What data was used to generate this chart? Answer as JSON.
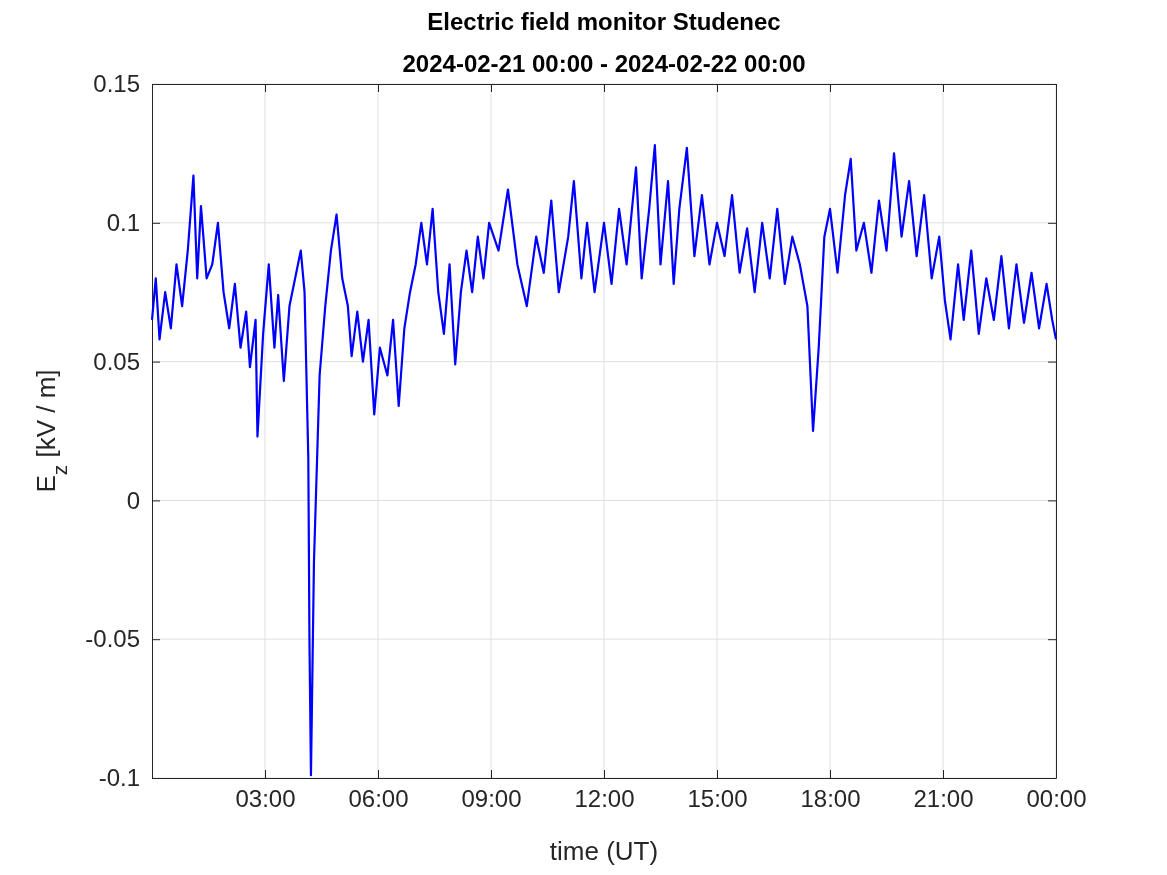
{
  "chart_data": {
    "type": "line",
    "title": "Electric field monitor Studenec",
    "subtitle": "2024-02-21 00:00 - 2024-02-22 00:00",
    "xlabel": "time (UT)",
    "ylabel": "E$_{z}$ [kV / m]",
    "xlim": [
      0,
      24
    ],
    "xticks": [
      {
        "value": 3,
        "label": "03:00"
      },
      {
        "value": 6,
        "label": "06:00"
      },
      {
        "value": 9,
        "label": "09:00"
      },
      {
        "value": 12,
        "label": "12:00"
      },
      {
        "value": 15,
        "label": "15:00"
      },
      {
        "value": 18,
        "label": "18:00"
      },
      {
        "value": 21,
        "label": "21:00"
      },
      {
        "value": 24,
        "label": "00:00"
      }
    ],
    "ylim": [
      -0.1,
      0.15
    ],
    "yticks": [
      -0.1,
      -0.05,
      0,
      0.05,
      0.1,
      0.15
    ],
    "grid": true,
    "marker": "none",
    "line_style": "solid",
    "x": [
      0,
      0.1,
      0.2,
      0.35,
      0.5,
      0.65,
      0.8,
      0.95,
      1.1,
      1.2,
      1.3,
      1.45,
      1.6,
      1.75,
      1.9,
      2.05,
      2.2,
      2.35,
      2.5,
      2.6,
      2.75,
      2.8,
      2.95,
      3.1,
      3.25,
      3.35,
      3.5,
      3.65,
      3.8,
      3.95,
      4.05,
      4.15,
      4.18,
      4.22,
      4.3,
      4.45,
      4.6,
      4.75,
      4.9,
      5.05,
      5.2,
      5.3,
      5.45,
      5.6,
      5.75,
      5.9,
      6.05,
      6.25,
      6.4,
      6.55,
      6.7,
      6.85,
      7,
      7.15,
      7.3,
      7.45,
      7.6,
      7.75,
      7.9,
      8.05,
      8.2,
      8.35,
      8.5,
      8.65,
      8.8,
      8.95,
      9.2,
      9.45,
      9.7,
      9.95,
      10.2,
      10.4,
      10.6,
      10.8,
      11.05,
      11.2,
      11.4,
      11.55,
      11.75,
      12,
      12.2,
      12.4,
      12.6,
      12.85,
      13,
      13.2,
      13.35,
      13.5,
      13.7,
      13.85,
      14,
      14.2,
      14.4,
      14.6,
      14.8,
      15,
      15.2,
      15.4,
      15.6,
      15.8,
      16,
      16.2,
      16.4,
      16.6,
      16.8,
      17,
      17.2,
      17.4,
      17.55,
      17.7,
      17.85,
      18,
      18.2,
      18.4,
      18.55,
      18.7,
      18.9,
      19.1,
      19.3,
      19.5,
      19.7,
      19.9,
      20.1,
      20.3,
      20.5,
      20.7,
      20.9,
      21.05,
      21.2,
      21.4,
      21.55,
      21.75,
      21.95,
      22.15,
      22.35,
      22.55,
      22.75,
      22.95,
      23.15,
      23.35,
      23.55,
      23.75,
      23.9,
      24
    ],
    "series": [
      {
        "color": "#0000ff",
        "values": [
          0.065,
          0.08,
          0.058,
          0.075,
          0.062,
          0.085,
          0.07,
          0.09,
          0.117,
          0.08,
          0.106,
          0.08,
          0.085,
          0.1,
          0.075,
          0.062,
          0.078,
          0.055,
          0.068,
          0.048,
          0.065,
          0.023,
          0.06,
          0.085,
          0.055,
          0.074,
          0.043,
          0.07,
          0.08,
          0.09,
          0.075,
          0.015,
          -0.05,
          -0.099,
          -0.022,
          0.045,
          0.07,
          0.09,
          0.103,
          0.08,
          0.07,
          0.052,
          0.068,
          0.05,
          0.065,
          0.031,
          0.055,
          0.045,
          0.065,
          0.034,
          0.062,
          0.075,
          0.085,
          0.1,
          0.085,
          0.105,
          0.075,
          0.06,
          0.085,
          0.049,
          0.075,
          0.09,
          0.075,
          0.095,
          0.08,
          0.1,
          0.09,
          0.112,
          0.085,
          0.07,
          0.095,
          0.082,
          0.108,
          0.075,
          0.095,
          0.115,
          0.08,
          0.1,
          0.075,
          0.1,
          0.078,
          0.105,
          0.085,
          0.12,
          0.08,
          0.105,
          0.128,
          0.085,
          0.115,
          0.078,
          0.105,
          0.127,
          0.088,
          0.11,
          0.085,
          0.1,
          0.088,
          0.11,
          0.082,
          0.098,
          0.075,
          0.1,
          0.08,
          0.105,
          0.078,
          0.095,
          0.085,
          0.07,
          0.025,
          0.055,
          0.095,
          0.105,
          0.082,
          0.11,
          0.123,
          0.09,
          0.1,
          0.082,
          0.108,
          0.09,
          0.125,
          0.095,
          0.115,
          0.088,
          0.11,
          0.08,
          0.095,
          0.072,
          0.058,
          0.085,
          0.065,
          0.09,
          0.06,
          0.08,
          0.065,
          0.088,
          0.062,
          0.085,
          0.064,
          0.082,
          0.062,
          0.078,
          0.065,
          0.058
        ]
      }
    ]
  }
}
